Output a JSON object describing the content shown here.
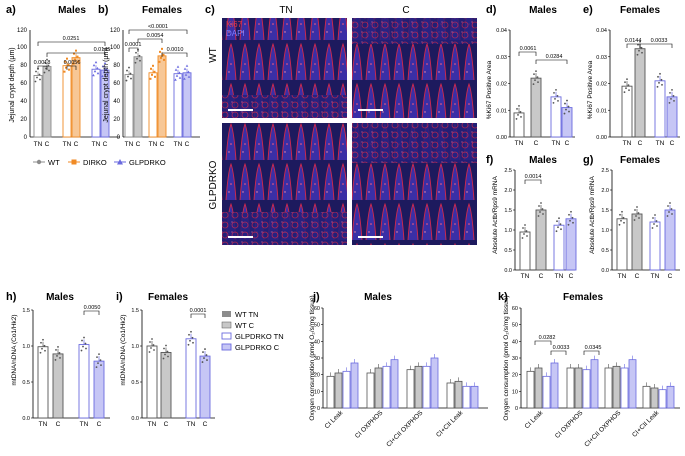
{
  "panels": {
    "a": {
      "letter": "a)",
      "title": "Males",
      "ylabel": "Jejunal crypt depth (µm)",
      "yticks": [
        "0",
        "20",
        "40",
        "60",
        "80",
        "100",
        "120"
      ],
      "sig": [
        "0.0251",
        "0.0018",
        "0.0056",
        "0.0145"
      ]
    },
    "b": {
      "letter": "b)",
      "title": "Females",
      "ylabel": "Jejunal crypt depth (µm)",
      "yticks": [
        "0",
        "20",
        "40",
        "60",
        "80",
        "100",
        "120"
      ],
      "sig": [
        "<0.0001",
        "0.0001",
        "0.0054",
        "0.0010"
      ]
    },
    "c": {
      "letter": "c)",
      "col_tn": "TN",
      "col_c": "C",
      "row_wt": "WT",
      "row_glp": "GLPDRKO",
      "stain1": "Ki67",
      "stain2": "DAPI"
    },
    "d": {
      "letter": "d)",
      "title": "Males",
      "ylabel": "%Ki67 Positive Area",
      "yticks": [
        "0.00",
        "0.01",
        "0.02",
        "0.03",
        "0.04"
      ],
      "sig": [
        "0.0061",
        "0.0284"
      ]
    },
    "e": {
      "letter": "e)",
      "title": "Females",
      "ylabel": "%Ki67 Positive Area",
      "yticks": [
        "0.00",
        "0.01",
        "0.02",
        "0.03",
        "0.04"
      ],
      "sig": [
        "0.0144",
        "0.0033"
      ]
    },
    "f": {
      "letter": "f)",
      "title": "Males",
      "ylabel": "Absolute Actb/Rps9 mRNA",
      "yticks": [
        "0.0",
        "0.5",
        "1.0",
        "1.5",
        "2.0",
        "2.5"
      ],
      "sig": [
        "0.0014"
      ]
    },
    "g": {
      "letter": "g)",
      "title": "Females",
      "ylabel": "Absolute Actb/Rps9 mRNA",
      "yticks": [
        "0.0",
        "0.5",
        "1.0",
        "1.5",
        "2.0",
        "2.5"
      ]
    },
    "h": {
      "letter": "h)",
      "title": "Males",
      "ylabel": "mtDNA/nDNA (Co1/Hk2)",
      "yticks": [
        "0.0",
        "0.5",
        "1.0",
        "1.5"
      ],
      "sig": [
        "0.0050"
      ]
    },
    "i": {
      "letter": "i)",
      "title": "Females",
      "ylabel": "mtDNA/nDNA (Co1/Hk2)",
      "yticks": [
        "0.0",
        "0.5",
        "1.0",
        "1.5"
      ],
      "sig": [
        "0.0001"
      ]
    },
    "j": {
      "letter": "j)",
      "title": "Males",
      "ylabel": "Oxygen consumption (pmol O₂/s/mg tissue)",
      "yticks": [
        "0",
        "10",
        "20",
        "30",
        "40",
        "50",
        "60"
      ]
    },
    "k": {
      "letter": "k)",
      "title": "Females",
      "ylabel": "Oxygen consumption (pmol O₂/s/mg tissue)",
      "yticks": [
        "0",
        "10",
        "20",
        "30",
        "40",
        "50",
        "60"
      ],
      "sig": [
        "0.0282",
        "0.0033",
        "0.0345"
      ]
    }
  },
  "legend_a": {
    "wt": "WT",
    "dirko": "DIRKO",
    "glpdrko": "GLPDRKO"
  },
  "legend_j": {
    "wt_tn": "WT TN",
    "wt_c": "WT C",
    "glp_tn": "GLPDRKO TN",
    "glp_c": "GLPDRKO C"
  },
  "tick_tn": "TN",
  "tick_c": "C",
  "colors": {
    "wt": "#8c8c8c",
    "dirko": "#f08a24",
    "glp": "#6a6adf",
    "bar_gray": "#c8c8c8",
    "bar_blue": "#c6c6f5"
  },
  "chart_data": [
    {
      "panel": "a",
      "type": "bar",
      "categories": [
        "WT TN",
        "WT C",
        "DIRKO TN",
        "DIRKO C",
        "GLPDRKO TN",
        "GLPDRKO C"
      ],
      "values": [
        69,
        79,
        80,
        89,
        76,
        75
      ],
      "ylim": [
        0,
        120
      ]
    },
    {
      "panel": "b",
      "type": "bar",
      "categories": [
        "WT TN",
        "WT C",
        "DIRKO TN",
        "DIRKO C",
        "GLPDRKO TN",
        "GLPDRKO C"
      ],
      "values": [
        70,
        90,
        72,
        91,
        71,
        72
      ],
      "ylim": [
        0,
        120
      ]
    },
    {
      "panel": "d",
      "type": "bar",
      "categories": [
        "WT TN",
        "WT C",
        "GLPDRKO TN",
        "GLPDRKO C"
      ],
      "values": [
        0.009,
        0.022,
        0.015,
        0.011
      ],
      "ylim": [
        0,
        0.04
      ]
    },
    {
      "panel": "e",
      "type": "bar",
      "categories": [
        "WT TN",
        "WT C",
        "GLPDRKO TN",
        "GLPDRKO C"
      ],
      "values": [
        0.019,
        0.033,
        0.021,
        0.015
      ],
      "ylim": [
        0,
        0.04
      ]
    },
    {
      "panel": "f",
      "type": "bar",
      "categories": [
        "WT TN",
        "WT C",
        "GLPDRKO TN",
        "GLPDRKO C"
      ],
      "values": [
        0.95,
        1.5,
        1.12,
        1.28
      ],
      "ylim": [
        0,
        2.5
      ]
    },
    {
      "panel": "g",
      "type": "bar",
      "categories": [
        "WT TN",
        "WT C",
        "GLPDRKO TN",
        "GLPDRKO C"
      ],
      "values": [
        1.28,
        1.4,
        1.2,
        1.5
      ],
      "ylim": [
        0,
        2.5
      ]
    },
    {
      "panel": "h",
      "type": "bar",
      "categories": [
        "WT TN",
        "WT C",
        "GLPDRKO TN",
        "GLPDRKO C"
      ],
      "values": [
        0.99,
        0.89,
        1.02,
        0.79
      ],
      "ylim": [
        0,
        1.5
      ]
    },
    {
      "panel": "i",
      "type": "bar",
      "categories": [
        "WT TN",
        "WT C",
        "GLPDRKO TN",
        "GLPDRKO C"
      ],
      "values": [
        1.0,
        0.91,
        1.1,
        0.86
      ],
      "ylim": [
        0,
        1.5
      ]
    },
    {
      "panel": "j",
      "type": "bar",
      "categories": [
        "CI Leak",
        "CI OXPHOS",
        "CI+CII OXPHOS",
        "CI+CII Leak"
      ],
      "series": [
        {
          "name": "WT TN",
          "values": [
            19,
            21,
            23,
            15
          ]
        },
        {
          "name": "WT C",
          "values": [
            21,
            24,
            25,
            16
          ]
        },
        {
          "name": "GLPDRKO TN",
          "values": [
            22,
            25,
            25,
            13
          ]
        },
        {
          "name": "GLPDRKO C",
          "values": [
            27,
            29,
            30,
            13
          ]
        }
      ],
      "ylim": [
        0,
        60
      ]
    },
    {
      "panel": "k",
      "type": "bar",
      "categories": [
        "CI Leak",
        "CI OXPHOS",
        "CI+CII OXPHOS",
        "CI+CII Leak"
      ],
      "series": [
        {
          "name": "WT TN",
          "values": [
            22,
            24,
            24,
            13
          ]
        },
        {
          "name": "WT C",
          "values": [
            24,
            24,
            25,
            12
          ]
        },
        {
          "name": "GLPDRKO TN",
          "values": [
            19,
            23,
            24,
            11
          ]
        },
        {
          "name": "GLPDRKO C",
          "values": [
            27,
            29,
            29,
            13
          ]
        }
      ],
      "ylim": [
        0,
        60
      ]
    }
  ]
}
